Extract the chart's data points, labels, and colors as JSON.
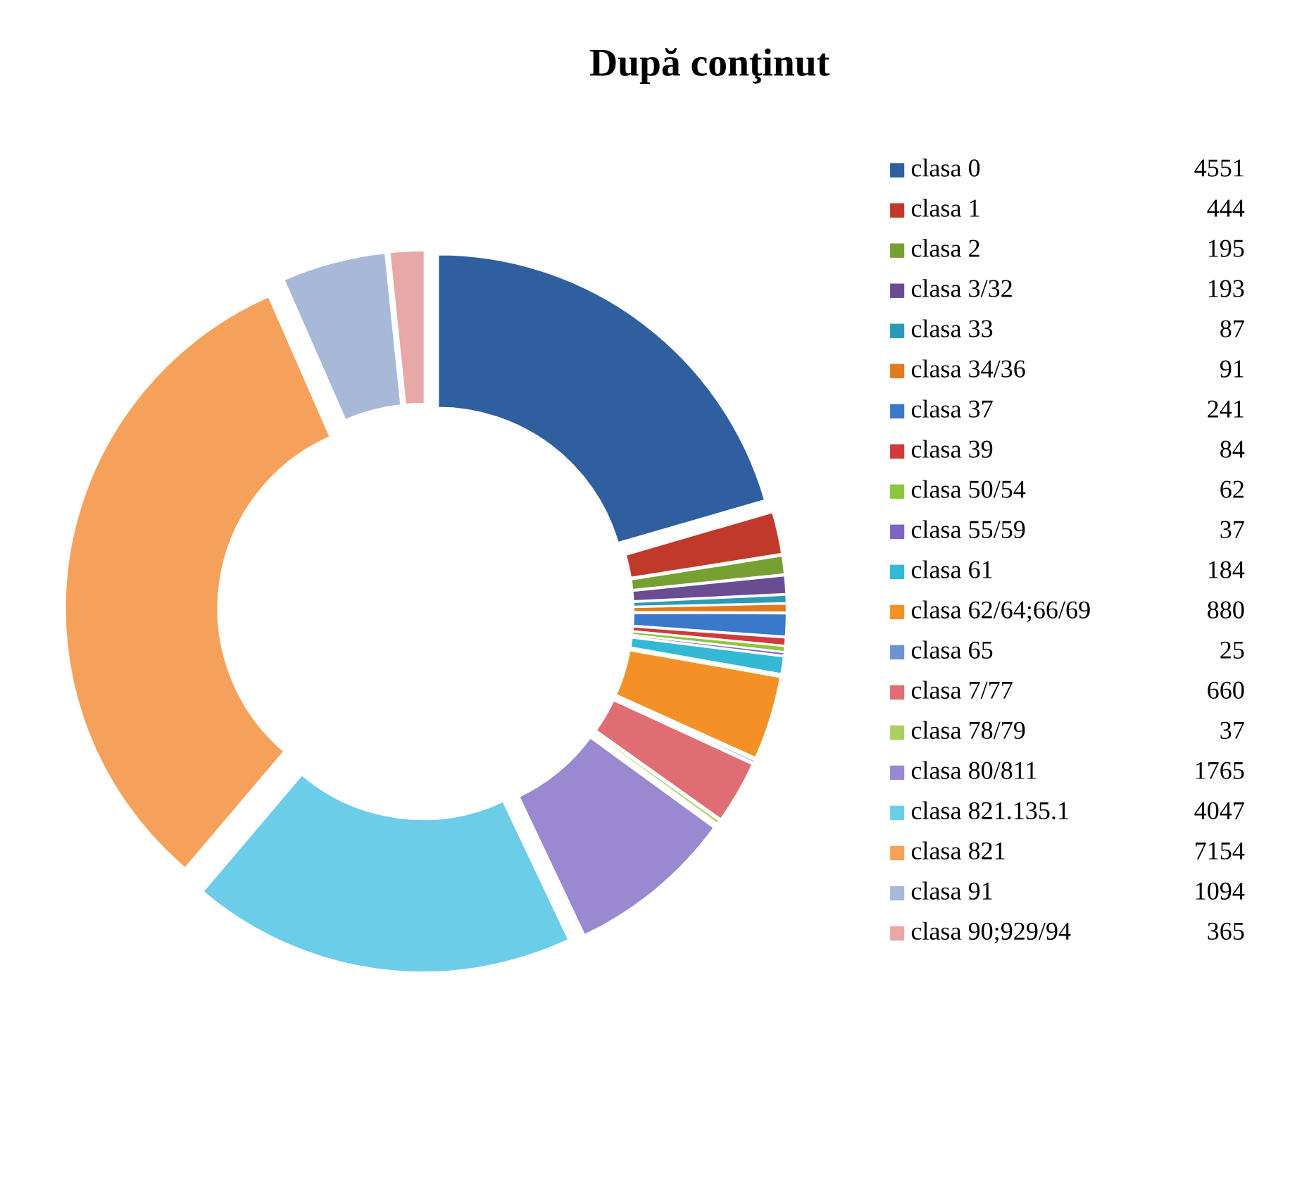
{
  "chart_data": {
    "type": "donut",
    "title": "După conţinut",
    "categories": [
      "clasa 0",
      "clasa 1",
      "clasa 2",
      "clasa 3/32",
      "clasa 33",
      "clasa 34/36",
      "clasa 37",
      "clasa 39",
      "clasa 50/54",
      "clasa 55/59",
      "clasa 61",
      "clasa 62/64;66/69",
      "clasa 65",
      "clasa 7/77",
      "clasa 78/79",
      "clasa 80/811",
      "clasa 821.135.1",
      "clasa 821",
      "clasa 91",
      "clasa 90;929/94"
    ],
    "values": [
      4551,
      444,
      195,
      193,
      87,
      91,
      241,
      84,
      62,
      37,
      184,
      880,
      25,
      660,
      37,
      1765,
      4047,
      7154,
      1094,
      365
    ],
    "colors": [
      "#2f5f9e",
      "#c0392b",
      "#77a033",
      "#6a4c93",
      "#2b9bb5",
      "#e07b20",
      "#3a78c9",
      "#d03a3a",
      "#8cc63f",
      "#8064c2",
      "#33b9d6",
      "#f39126",
      "#6e94d0",
      "#e06c74",
      "#a8cf60",
      "#9a88d0",
      "#6ccde8",
      "#f6a15a",
      "#a8b8d8",
      "#e8a8a8"
    ],
    "data_labels": true,
    "legend": "right"
  }
}
